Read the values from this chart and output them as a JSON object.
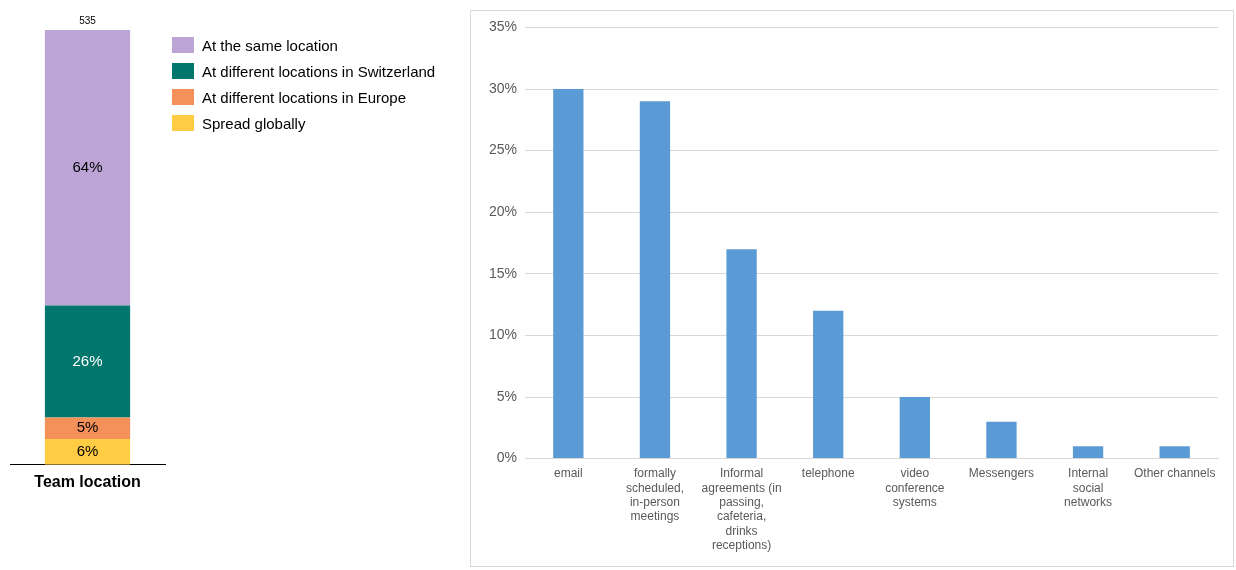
{
  "chart_data": [
    {
      "type": "bar",
      "stacked": true,
      "categories": [
        "Team location"
      ],
      "legend": "right",
      "grid": false,
      "tick_labels": "x",
      "series": [
        {
          "name": "Spread globally",
          "color": "#ffcc44",
          "values": [
            6
          ],
          "value_labels": [
            "6%"
          ]
        },
        {
          "name": "At different locations in Europe",
          "color": "#f4905a",
          "values": [
            5
          ],
          "value_labels": [
            "5%"
          ]
        },
        {
          "name": "At different locations in Switzerland",
          "color": "#00766c",
          "values": [
            26
          ],
          "value_labels": [
            "26%"
          ]
        },
        {
          "name": "At the same location",
          "color": "#bca5d6",
          "values": [
            64
          ],
          "value_labels": [
            "64%"
          ]
        }
      ],
      "annotations": [
        "535"
      ]
    },
    {
      "type": "bar",
      "categories": [
        "email",
        "formally scheduled, in-person meetings",
        "Informal agreements (in passing, cafeteria, drinks receptions)",
        "telephone",
        "video conference systems",
        "Messengers",
        "Internal social networks",
        "Other channels"
      ],
      "values": [
        30,
        29,
        17,
        12,
        5,
        3,
        1,
        1
      ],
      "color": "#5b9bd5",
      "legend": false,
      "grid": "y",
      "ylim": [
        0,
        35
      ],
      "yticks": [
        {
          "value": 0,
          "label": "0%"
        },
        {
          "value": 5,
          "label": "5%"
        },
        {
          "value": 10,
          "label": "10%"
        },
        {
          "value": 15,
          "label": "15%"
        },
        {
          "value": 20,
          "label": "20%"
        },
        {
          "value": 25,
          "label": "25%"
        },
        {
          "value": 30,
          "label": "30%"
        },
        {
          "value": 35,
          "label": "35%"
        }
      ]
    }
  ]
}
